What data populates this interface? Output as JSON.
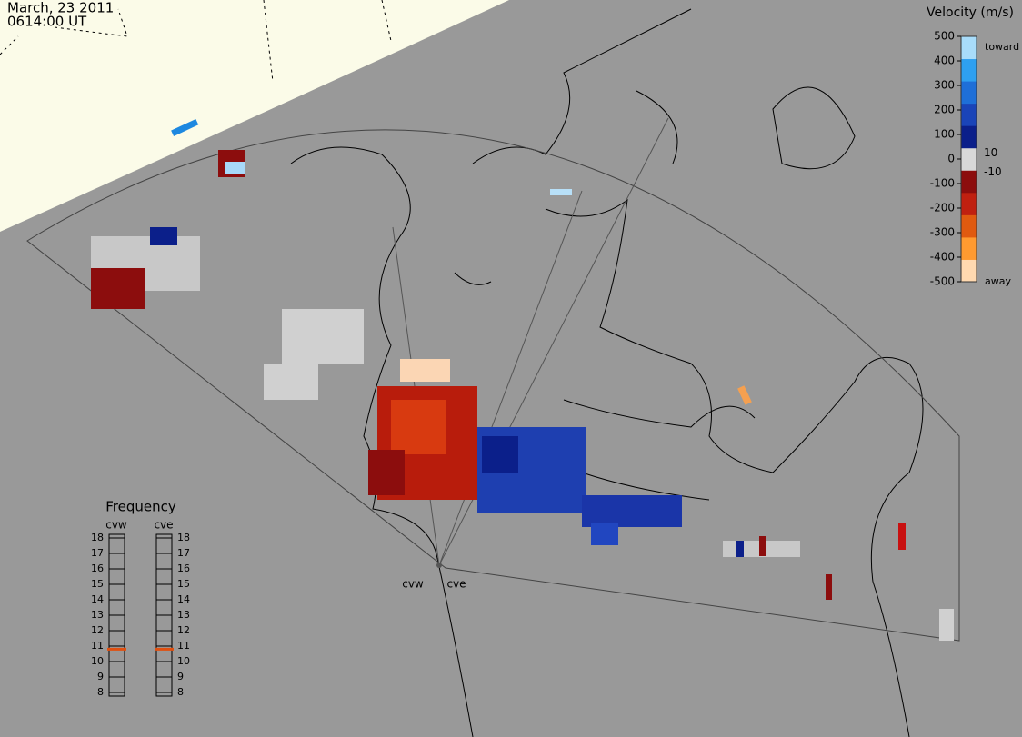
{
  "header": {
    "date": "March, 23 2011",
    "time": "0614:00 UT"
  },
  "velocity_scale": {
    "title": "Velocity (m/s)",
    "ylim": [
      -500,
      500
    ],
    "ticks": [
      500,
      400,
      300,
      200,
      100,
      0,
      -100,
      -200,
      -300,
      -400,
      -500
    ],
    "inner_ticks": [
      10,
      -10
    ],
    "toward": "toward",
    "away": "away"
  },
  "frequency_panel": {
    "title": "Frequency",
    "ylim": [
      8,
      18
    ],
    "ticks": [
      18,
      17,
      16,
      15,
      14,
      13,
      12,
      11,
      10,
      9,
      8
    ],
    "radars": [
      {
        "name": "cvw",
        "value": 10.8
      },
      {
        "name": "cve",
        "value": 10.8
      }
    ]
  },
  "map": {
    "radar_labels": [
      "cvw",
      "cve"
    ]
  }
}
